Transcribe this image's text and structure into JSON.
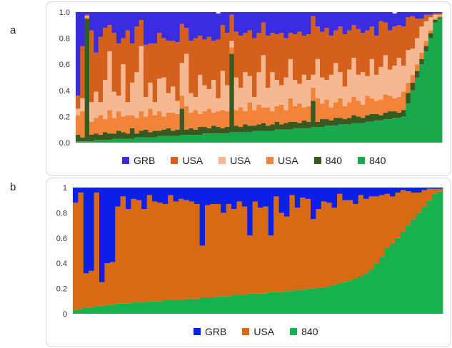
{
  "panels": [
    {
      "label": "a"
    },
    {
      "label": "b"
    }
  ],
  "chart_data": [
    {
      "type": "bar",
      "stacked": true,
      "normalized": true,
      "ylim": [
        0,
        1
      ],
      "yticks": [
        "0.0",
        "0.2",
        "0.4",
        "0.6",
        "0.8",
        "1.0"
      ],
      "grid": false,
      "legend_position": "bottom",
      "series": [
        {
          "name": "840",
          "color": "#1aa84f",
          "values": [
            0.01,
            0.01,
            0.01,
            0.01,
            0.02,
            0.02,
            0.02,
            0.02,
            0.03,
            0.03,
            0.03,
            0.03,
            0.03,
            0.04,
            0.04,
            0.04,
            0.04,
            0.04,
            0.05,
            0.05,
            0.05,
            0.05,
            0.05,
            0.06,
            0.06,
            0.06,
            0.06,
            0.06,
            0.07,
            0.07,
            0.07,
            0.07,
            0.07,
            0.07,
            0.08,
            0.08,
            0.08,
            0.08,
            0.08,
            0.09,
            0.09,
            0.09,
            0.09,
            0.09,
            0.1,
            0.1,
            0.1,
            0.1,
            0.11,
            0.11,
            0.11,
            0.11,
            0.12,
            0.12,
            0.12,
            0.13,
            0.13,
            0.13,
            0.14,
            0.14,
            0.14,
            0.15,
            0.15,
            0.15,
            0.16,
            0.16,
            0.17,
            0.17,
            0.18,
            0.18,
            0.19,
            0.19,
            0.2,
            0.3,
            0.4,
            0.5,
            0.6,
            0.7,
            0.8,
            0.92,
            0.95
          ]
        },
        {
          "name": "840",
          "color": "#375a23",
          "values": [
            0.05,
            0.03,
            0.94,
            0.05,
            0.05,
            0.04,
            0.06,
            0.05,
            0.04,
            0.06,
            0.05,
            0.04,
            0.08,
            0.03,
            0.05,
            0.06,
            0.04,
            0.05,
            0.04,
            0.05,
            0.06,
            0.04,
            0.05,
            0.2,
            0.04,
            0.05,
            0.04,
            0.06,
            0.05,
            0.04,
            0.06,
            0.05,
            0.04,
            0.05,
            0.6,
            0.05,
            0.04,
            0.06,
            0.05,
            0.04,
            0.05,
            0.06,
            0.04,
            0.05,
            0.06,
            0.04,
            0.05,
            0.06,
            0.05,
            0.04,
            0.06,
            0.05,
            0.2,
            0.04,
            0.06,
            0.05,
            0.04,
            0.06,
            0.05,
            0.04,
            0.05,
            0.06,
            0.05,
            0.04,
            0.05,
            0.06,
            0.05,
            0.04,
            0.05,
            0.06,
            0.05,
            0.04,
            0.05,
            0.08,
            0.06,
            0.05,
            0.04,
            0.04,
            0.04,
            0.02,
            0.01
          ]
        },
        {
          "name": "USA",
          "color": "#f2843a",
          "values": [
            0.15,
            0.2,
            0.01,
            0.1,
            0.12,
            0.15,
            0.1,
            0.18,
            0.12,
            0.15,
            0.12,
            0.14,
            0.1,
            0.12,
            0.15,
            0.1,
            0.18,
            0.12,
            0.15,
            0.1,
            0.12,
            0.14,
            0.12,
            0.1,
            0.18,
            0.12,
            0.15,
            0.1,
            0.12,
            0.15,
            0.1,
            0.12,
            0.14,
            0.12,
            0.05,
            0.12,
            0.15,
            0.1,
            0.18,
            0.12,
            0.15,
            0.12,
            0.14,
            0.1,
            0.12,
            0.15,
            0.1,
            0.18,
            0.12,
            0.15,
            0.1,
            0.12,
            0.1,
            0.18,
            0.12,
            0.15,
            0.1,
            0.12,
            0.15,
            0.1,
            0.12,
            0.14,
            0.12,
            0.1,
            0.15,
            0.12,
            0.1,
            0.12,
            0.14,
            0.12,
            0.1,
            0.12,
            0.14,
            0.08,
            0.06,
            0.05,
            0.05,
            0.04,
            0.02,
            0.01,
            0.01
          ]
        },
        {
          "name": "USA",
          "color": "#f5b893",
          "values": [
            0.05,
            0.1,
            0.01,
            0.15,
            0.2,
            0.1,
            0.3,
            0.45,
            0.2,
            0.12,
            0.4,
            0.1,
            0.25,
            0.35,
            0.5,
            0.15,
            0.2,
            0.1,
            0.25,
            0.3,
            0.15,
            0.2,
            0.1,
            0.25,
            0.4,
            0.15,
            0.1,
            0.3,
            0.2,
            0.15,
            0.25,
            0.1,
            0.3,
            0.2,
            0.05,
            0.25,
            0.15,
            0.3,
            0.2,
            0.1,
            0.25,
            0.4,
            0.15,
            0.3,
            0.2,
            0.15,
            0.25,
            0.3,
            0.2,
            0.15,
            0.25,
            0.2,
            0.1,
            0.3,
            0.2,
            0.15,
            0.25,
            0.3,
            0.2,
            0.15,
            0.25,
            0.3,
            0.2,
            0.25,
            0.15,
            0.3,
            0.2,
            0.25,
            0.3,
            0.2,
            0.25,
            0.3,
            0.2,
            0.25,
            0.2,
            0.2,
            0.2,
            0.15,
            0.1,
            0.03,
            0.01
          ]
        },
        {
          "name": "USA",
          "color": "#d4601d",
          "values": [
            0.1,
            0.4,
            0.01,
            0.55,
            0.3,
            0.5,
            0.4,
            0.2,
            0.45,
            0.4,
            0.2,
            0.55,
            0.3,
            0.35,
            0.2,
            0.4,
            0.3,
            0.45,
            0.35,
            0.3,
            0.4,
            0.35,
            0.45,
            0.3,
            0.2,
            0.4,
            0.45,
            0.3,
            0.35,
            0.4,
            0.3,
            0.45,
            0.35,
            0.4,
            0.2,
            0.35,
            0.4,
            0.3,
            0.35,
            0.45,
            0.3,
            0.25,
            0.4,
            0.3,
            0.35,
            0.4,
            0.3,
            0.2,
            0.35,
            0.4,
            0.3,
            0.35,
            0.45,
            0.25,
            0.35,
            0.4,
            0.3,
            0.25,
            0.35,
            0.4,
            0.3,
            0.25,
            0.35,
            0.3,
            0.35,
            0.25,
            0.3,
            0.35,
            0.25,
            0.3,
            0.3,
            0.25,
            0.3,
            0.25,
            0.25,
            0.15,
            0.06,
            0.05,
            0.02,
            0.01,
            0.01
          ]
        },
        {
          "name": "GRB",
          "color": "#3a2de0",
          "values": [
            0.64,
            0.26,
            0.03,
            0.14,
            0.31,
            0.19,
            0.12,
            0.1,
            0.16,
            0.24,
            0.2,
            0.14,
            0.24,
            0.12,
            0.06,
            0.25,
            0.24,
            0.24,
            0.16,
            0.2,
            0.22,
            0.22,
            0.23,
            0.09,
            0.12,
            0.22,
            0.2,
            0.18,
            0.21,
            0.19,
            0.22,
            0.2,
            0.13,
            0.16,
            0.02,
            0.15,
            0.18,
            0.16,
            0.14,
            0.2,
            0.16,
            0.08,
            0.18,
            0.16,
            0.17,
            0.16,
            0.2,
            0.16,
            0.17,
            0.15,
            0.18,
            0.17,
            0.13,
            0.11,
            0.15,
            0.12,
            0.18,
            0.14,
            0.11,
            0.17,
            0.14,
            0.1,
            0.13,
            0.16,
            0.14,
            0.11,
            0.18,
            0.12,
            0.08,
            0.14,
            0.1,
            0.1,
            0.11,
            0.04,
            0.03,
            0.05,
            0.05,
            0.02,
            0.02,
            0.01,
            0.01
          ]
        }
      ],
      "legend": [
        {
          "name": "GRB",
          "color": "#3a2de0"
        },
        {
          "name": "USA",
          "color": "#d4601d"
        },
        {
          "name": "USA",
          "color": "#f5b893"
        },
        {
          "name": "USA",
          "color": "#f2843a"
        },
        {
          "name": "840",
          "color": "#375a23"
        },
        {
          "name": "840",
          "color": "#1aa84f"
        }
      ]
    },
    {
      "type": "bar",
      "stacked": true,
      "normalized": true,
      "ylim": [
        0,
        1
      ],
      "yticks": [
        "0",
        "0.2",
        "0.4",
        "0.6",
        "0.8",
        "1"
      ],
      "grid": false,
      "legend_position": "bottom",
      "series": [
        {
          "name": "840",
          "color": "#17b24d",
          "values": [
            0.03,
            0.04,
            0.05,
            0.05,
            0.06,
            0.06,
            0.07,
            0.07,
            0.08,
            0.08,
            0.08,
            0.09,
            0.09,
            0.09,
            0.1,
            0.1,
            0.1,
            0.11,
            0.11,
            0.11,
            0.11,
            0.12,
            0.12,
            0.12,
            0.13,
            0.13,
            0.13,
            0.14,
            0.14,
            0.14,
            0.15,
            0.15,
            0.15,
            0.16,
            0.16,
            0.16,
            0.16,
            0.17,
            0.17,
            0.17,
            0.18,
            0.18,
            0.19,
            0.19,
            0.2,
            0.2,
            0.21,
            0.21,
            0.22,
            0.23,
            0.24,
            0.25,
            0.26,
            0.28,
            0.3,
            0.32,
            0.35,
            0.4,
            0.45,
            0.52,
            0.56,
            0.6,
            0.65,
            0.7,
            0.75,
            0.8,
            0.85,
            0.9,
            0.95,
            0.97
          ]
        },
        {
          "name": "USA",
          "color": "#d96a14",
          "values": [
            0.85,
            0.92,
            0.27,
            0.29,
            0.9,
            0.19,
            0.33,
            0.34,
            0.77,
            0.85,
            0.75,
            0.82,
            0.81,
            0.74,
            0.84,
            0.79,
            0.78,
            0.76,
            0.83,
            0.78,
            0.8,
            0.78,
            0.77,
            0.75,
            0.41,
            0.73,
            0.74,
            0.73,
            0.66,
            0.73,
            0.68,
            0.74,
            0.7,
            0.46,
            0.73,
            0.68,
            0.69,
            0.45,
            0.76,
            0.63,
            0.59,
            0.76,
            0.65,
            0.73,
            0.71,
            0.55,
            0.62,
            0.68,
            0.66,
            0.61,
            0.71,
            0.65,
            0.64,
            0.59,
            0.64,
            0.59,
            0.58,
            0.53,
            0.49,
            0.43,
            0.37,
            0.36,
            0.33,
            0.27,
            0.21,
            0.16,
            0.13,
            0.09,
            0.04,
            0.02
          ]
        },
        {
          "name": "GRB",
          "color": "#0b1fe6",
          "values": [
            0.12,
            0.04,
            0.68,
            0.66,
            0.04,
            0.75,
            0.6,
            0.59,
            0.15,
            0.07,
            0.17,
            0.09,
            0.1,
            0.17,
            0.06,
            0.11,
            0.12,
            0.13,
            0.06,
            0.11,
            0.09,
            0.1,
            0.11,
            0.13,
            0.46,
            0.14,
            0.13,
            0.13,
            0.2,
            0.13,
            0.17,
            0.11,
            0.15,
            0.38,
            0.11,
            0.16,
            0.15,
            0.38,
            0.07,
            0.2,
            0.23,
            0.06,
            0.16,
            0.08,
            0.09,
            0.25,
            0.17,
            0.11,
            0.12,
            0.16,
            0.05,
            0.1,
            0.1,
            0.13,
            0.06,
            0.09,
            0.07,
            0.07,
            0.06,
            0.05,
            0.07,
            0.04,
            0.02,
            0.03,
            0.04,
            0.04,
            0.02,
            0.01,
            0.01,
            0.01
          ]
        }
      ],
      "legend": [
        {
          "name": "GRB",
          "color": "#0b1fe6"
        },
        {
          "name": "USA",
          "color": "#d96a14"
        },
        {
          "name": "840",
          "color": "#17b24d"
        }
      ]
    }
  ]
}
